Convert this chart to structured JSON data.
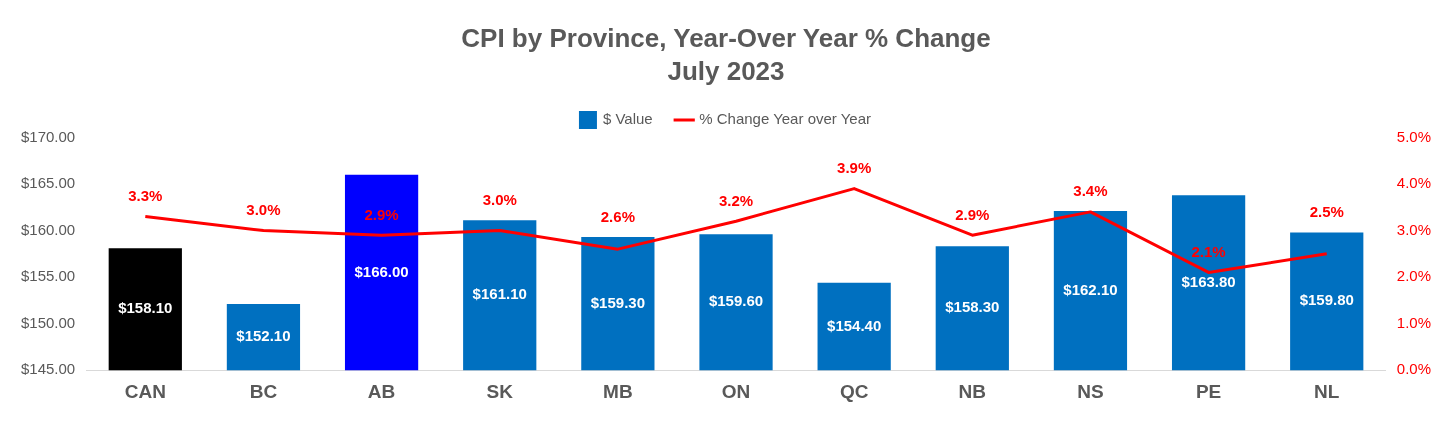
{
  "chart_data": {
    "type": "bar",
    "title": "CPI by Province, Year-Over Year % Change",
    "subtitle": "July 2023",
    "categories": [
      "CAN",
      "BC",
      "AB",
      "SK",
      "MB",
      "ON",
      "QC",
      "NB",
      "NS",
      "PE",
      "NL"
    ],
    "series": [
      {
        "name": "$ Value",
        "color": "#0070c0",
        "colors": [
          "#000000",
          "#0070c0",
          "#0000ff",
          "#0070c0",
          "#0070c0",
          "#0070c0",
          "#0070c0",
          "#0070c0",
          "#0070c0",
          "#0070c0",
          "#0070c0"
        ],
        "values": [
          158.1,
          152.1,
          166.0,
          161.1,
          159.3,
          159.6,
          154.4,
          158.3,
          162.1,
          163.8,
          159.8
        ],
        "value_labels": [
          "$158.10",
          "$152.10",
          "$166.00",
          "$161.10",
          "$159.30",
          "$159.60",
          "$154.40",
          "$158.30",
          "$162.10",
          "$163.80",
          "$159.80"
        ]
      },
      {
        "name": "% Change Year over Year",
        "type": "line",
        "axis": "y2",
        "color": "#ff0000",
        "values": [
          3.3,
          3.0,
          2.9,
          3.0,
          2.6,
          3.2,
          3.9,
          2.9,
          3.4,
          2.1,
          2.5
        ],
        "value_labels": [
          "3.3%",
          "3.0%",
          "2.9%",
          "3.0%",
          "2.6%",
          "3.2%",
          "3.9%",
          "2.9%",
          "3.4%",
          "2.1%",
          "2.5%"
        ]
      }
    ],
    "ylim": [
      145,
      170
    ],
    "yticks": [
      {
        "value": 145,
        "label": "$145.00"
      },
      {
        "value": 150,
        "label": "$150.00"
      },
      {
        "value": 155,
        "label": "$155.00"
      },
      {
        "value": 160,
        "label": "$160.00"
      },
      {
        "value": 165,
        "label": "$165.00"
      },
      {
        "value": 170,
        "label": "$170.00"
      }
    ],
    "y2lim": [
      0,
      5
    ],
    "y2ticks": [
      {
        "value": 0,
        "label": "0.0%"
      },
      {
        "value": 1,
        "label": "1.0%"
      },
      {
        "value": 2,
        "label": "2.0%"
      },
      {
        "value": 3,
        "label": "3.0%"
      },
      {
        "value": 4,
        "label": "4.0%"
      },
      {
        "value": 5,
        "label": "5.0%"
      }
    ],
    "grid": false,
    "legend": "top",
    "marker": "none",
    "line_style": "solid"
  }
}
